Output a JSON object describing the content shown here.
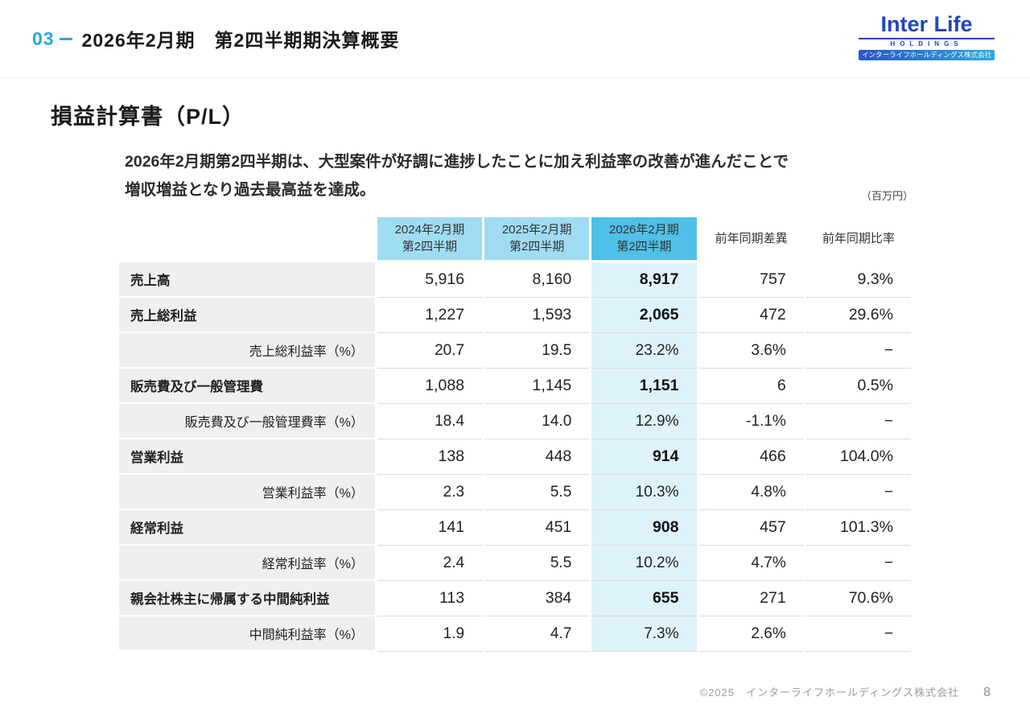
{
  "header": {
    "section_number": "03",
    "title": "2026年2月期　第2四半期期決算概要"
  },
  "logo": {
    "brand": "Inter Life",
    "holdings": "HOLDINGS",
    "company_jp": "インターライフホールディングス株式会社"
  },
  "main": {
    "slide_title": "損益計算書（P/L）",
    "lead_line1": "2026年2月期第2四半期は、大型案件が好調に進捗したことに加え利益率の改善が進んだことで",
    "lead_line2": "増収増益となり過去最高益を達成。",
    "unit_note": "（百万円）"
  },
  "table": {
    "column_headers": [
      {
        "line1": "2024年2月期",
        "line2": "第2四半期",
        "style": "light"
      },
      {
        "line1": "2025年2月期",
        "line2": "第2四半期",
        "style": "light"
      },
      {
        "line1": "2026年2月期",
        "line2": "第2四半期",
        "style": "dark"
      },
      {
        "line1": "前年同期差異",
        "line2": "",
        "style": "plain"
      },
      {
        "line1": "前年同期比率",
        "line2": "",
        "style": "plain"
      }
    ],
    "rows": [
      {
        "label": "売上高",
        "type": "main",
        "values": [
          "5,916",
          "8,160",
          "8,917",
          "757",
          "9.3%"
        ]
      },
      {
        "label": "売上総利益",
        "type": "main",
        "values": [
          "1,227",
          "1,593",
          "2,065",
          "472",
          "29.6%"
        ]
      },
      {
        "label": "売上総利益率（%）",
        "type": "rate",
        "values": [
          "20.7",
          "19.5",
          "23.2%",
          "3.6%",
          "−"
        ]
      },
      {
        "label": "販売費及び一般管理費",
        "type": "main",
        "values": [
          "1,088",
          "1,145",
          "1,151",
          "6",
          "0.5%"
        ]
      },
      {
        "label": "販売費及び一般管理費率（%）",
        "type": "rate",
        "values": [
          "18.4",
          "14.0",
          "12.9%",
          "-1.1%",
          "−"
        ]
      },
      {
        "label": "営業利益",
        "type": "main",
        "values": [
          "138",
          "448",
          "914",
          "466",
          "104.0%"
        ]
      },
      {
        "label": "営業利益率（%）",
        "type": "rate",
        "values": [
          "2.3",
          "5.5",
          "10.3%",
          "4.8%",
          "−"
        ]
      },
      {
        "label": "経常利益",
        "type": "main",
        "values": [
          "141",
          "451",
          "908",
          "457",
          "101.3%"
        ]
      },
      {
        "label": "経常利益率（%）",
        "type": "rate",
        "values": [
          "2.4",
          "5.5",
          "10.2%",
          "4.7%",
          "−"
        ]
      },
      {
        "label": "親会社株主に帰属する中間純利益",
        "type": "main",
        "values": [
          "113",
          "384",
          "655",
          "271",
          "70.6%"
        ]
      },
      {
        "label": "中間純利益率（%）",
        "type": "rate",
        "values": [
          "1.9",
          "4.7",
          "7.3%",
          "2.6%",
          "−"
        ]
      }
    ]
  },
  "footer": {
    "copyright": "©2025　インターライフホールディングス株式会社",
    "page_number": "8"
  },
  "colors": {
    "accent_blue": "#2aa7e0",
    "logo_blue": "#2046c0",
    "header_light_blue": "#9fdcf2",
    "header_dark_blue": "#4fc0e8",
    "highlight_column_bg": "#def2fb",
    "label_column_bg": "#efefef"
  }
}
